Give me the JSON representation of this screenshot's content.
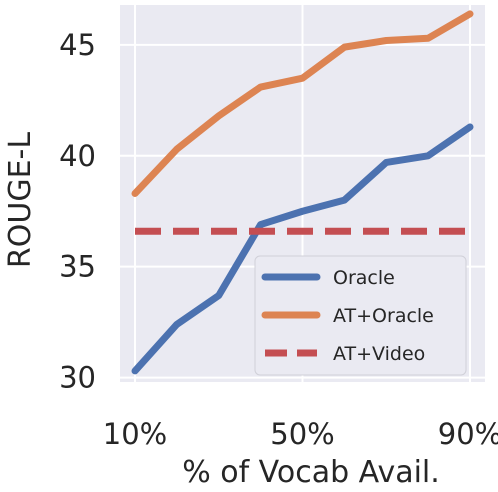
{
  "chart_data": {
    "type": "line",
    "title": "",
    "xlabel": "% of Vocab Avail.",
    "ylabel": "ROUGE-L",
    "x": [
      10,
      20,
      30,
      40,
      50,
      60,
      70,
      80,
      90
    ],
    "xticks": [
      {
        "value": 10,
        "label": "10%"
      },
      {
        "value": 50,
        "label": "50%"
      },
      {
        "value": 90,
        "label": "90%"
      }
    ],
    "yticks": [
      30,
      35,
      40,
      45
    ],
    "xlim": [
      10,
      90
    ],
    "ylim": [
      29.8,
      46.8
    ],
    "grid": true,
    "legend_position": "lower-right",
    "series": [
      {
        "name": "Oracle",
        "color": "#4c72b0",
        "style": "solid",
        "values": [
          30.3,
          32.4,
          33.7,
          36.9,
          37.5,
          38.0,
          39.7,
          40.0,
          41.3
        ]
      },
      {
        "name": "AT+Oracle",
        "color": "#dd8452",
        "style": "solid",
        "values": [
          38.3,
          40.3,
          41.8,
          43.1,
          43.5,
          44.9,
          45.2,
          45.3,
          46.4
        ]
      },
      {
        "name": "AT+Video",
        "color": "#c44e52",
        "style": "dashed",
        "values": [
          36.6,
          36.6,
          36.6,
          36.6,
          36.6,
          36.6,
          36.6,
          36.6,
          36.6
        ]
      }
    ]
  }
}
